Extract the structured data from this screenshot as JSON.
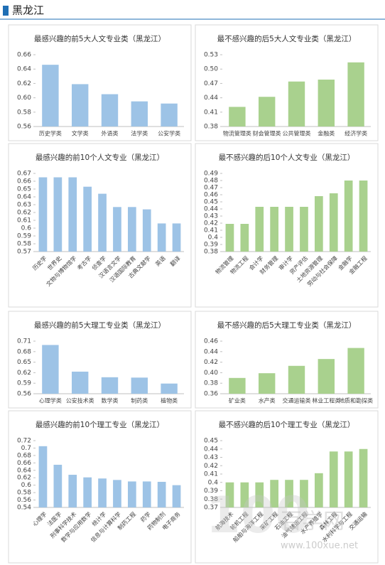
{
  "header": "黑龙江",
  "watermark": {
    "logo": "100",
    "brand": "百学网",
    "url": "www.100xue.net"
  },
  "chart_data": [
    {
      "type": "bar",
      "title": "最感兴趣的前5大人文专业类（黑龙江）",
      "color": "#9dc3e6",
      "grid": false,
      "categories": [
        "历史学类",
        "文学类",
        "外语类",
        "法学类",
        "公安学类"
      ],
      "values": [
        0.646,
        0.619,
        0.605,
        0.595,
        0.592
      ],
      "ylim": [
        0.56,
        0.66
      ],
      "yticks": [
        0.56,
        0.58,
        {
          "value": 0.6,
          "label": "0.60"
        },
        0.62,
        0.64,
        0.66
      ]
    },
    {
      "type": "bar",
      "title": "最不感兴趣的后5大人文专业类（黑龙江）",
      "color": "#a9d18e",
      "grid": false,
      "categories": [
        "物流管理类",
        "财会管理类",
        "公共管理类",
        "金融类",
        "经济学类"
      ],
      "values": [
        0.421,
        0.442,
        0.474,
        0.478,
        0.514
      ],
      "ylim": [
        0.38,
        0.53
      ],
      "yticks": [
        0.38,
        0.41,
        0.44,
        0.47,
        {
          "value": 0.5,
          "label": "0.50"
        },
        0.53
      ]
    },
    {
      "type": "bar",
      "title": "最感兴趣的前10个人文专业（黑龙江）",
      "color": "#9dc3e6",
      "grid": false,
      "categories": [
        "历史学",
        "世界史",
        "文物与博物馆学",
        "考古学",
        "侦查学",
        "汉语言文学",
        "汉语国际教育",
        "古典文献学",
        "英语",
        "翻译"
      ],
      "values": [
        0.665,
        0.665,
        0.665,
        0.653,
        0.644,
        0.627,
        0.627,
        0.624,
        0.606,
        0.606
      ],
      "ylim": [
        0.57,
        0.67
      ],
      "yticks": [
        0.57,
        0.58,
        0.59,
        0.6,
        0.61,
        0.62,
        0.63,
        0.64,
        0.65,
        0.66,
        0.67
      ]
    },
    {
      "type": "bar",
      "title": "最不感兴趣的后10个人文专业（黑龙江）",
      "color": "#a9d18e",
      "grid": false,
      "categories": [
        "物流管理",
        "物流工程",
        "会计学",
        "财务管理",
        "审计学",
        "资产评估",
        "土地资源管理",
        "劳动与社会保障",
        "金融学",
        "金融工程"
      ],
      "values": [
        0.419,
        0.419,
        0.443,
        0.443,
        0.443,
        0.443,
        0.458,
        0.462,
        0.48,
        0.48
      ],
      "ylim": [
        0.38,
        0.49
      ],
      "yticks": [
        0.38,
        0.39,
        0.4,
        0.41,
        0.42,
        0.43,
        0.44,
        0.45,
        0.46,
        0.47,
        0.48,
        0.49
      ]
    },
    {
      "type": "bar",
      "title": "最感兴趣的前5大理工专业类（黑龙江）",
      "color": "#9dc3e6",
      "grid": false,
      "categories": [
        "心理学类",
        "公安技术类",
        "数学类",
        "制药类",
        "植物类"
      ],
      "values": [
        0.699,
        0.623,
        0.607,
        0.606,
        0.589
      ],
      "ylim": [
        0.56,
        0.71
      ],
      "yticks": [
        0.56,
        0.59,
        0.62,
        0.65,
        0.68,
        0.71
      ]
    },
    {
      "type": "bar",
      "title": "最不感兴趣的后5大理工专业类（黑龙江）",
      "color": "#a9d18e",
      "grid": false,
      "categories": [
        "矿业类",
        "水产类",
        "交通运输类",
        "林业工程类",
        "地质和勘探类"
      ],
      "values": [
        0.39,
        0.399,
        0.413,
        0.426,
        0.447
      ],
      "ylim": [
        0.36,
        0.46
      ],
      "yticks": [
        0.36,
        0.38,
        {
          "value": 0.4,
          "label": "0.40"
        },
        0.42,
        0.44,
        0.46
      ]
    },
    {
      "type": "bar",
      "title": "最感兴趣的前10个理工专业（黑龙江）",
      "color": "#9dc3e6",
      "grid": false,
      "categories": [
        "心理学",
        "法医学",
        "刑事科学技术",
        "数学与应用数学",
        "统计学",
        "信息与计算科学",
        "制药工程",
        "药学",
        "药物制剂",
        "电子商务"
      ],
      "values": [
        0.705,
        0.655,
        0.628,
        0.621,
        0.618,
        0.614,
        0.61,
        0.61,
        0.609,
        0.6
      ],
      "ylim": [
        0.54,
        0.72
      ],
      "yticks": [
        0.54,
        0.56,
        0.58,
        0.6,
        0.62,
        0.64,
        0.66,
        0.68,
        0.7,
        0.72
      ]
    },
    {
      "type": "bar",
      "title": "最不感兴趣的后10个理工专业（黑龙江）",
      "color": "#a9d18e",
      "grid": false,
      "categories": [
        "航海技术",
        "轮机工程",
        "船舶与海洋工程",
        "采矿工程",
        "石油工程",
        "油气储运工程",
        "水产养殖学",
        "森林工程",
        "水利科学与工程",
        "交通运输"
      ],
      "values": [
        0.4,
        0.4,
        0.4,
        0.403,
        0.403,
        0.403,
        0.411,
        0.437,
        0.437,
        0.44
      ],
      "ylim": [
        0.37,
        0.45
      ],
      "yticks": [
        0.37,
        0.38,
        0.39,
        0.4,
        0.41,
        0.42,
        0.43,
        0.44,
        0.45
      ]
    }
  ]
}
